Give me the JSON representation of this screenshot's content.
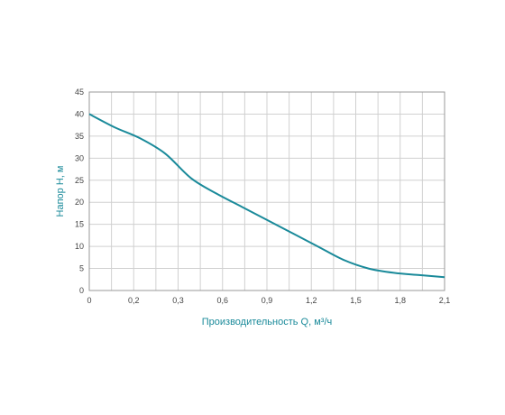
{
  "chart_data": {
    "type": "line",
    "title": "",
    "xlabel": "Производительность Q, м³/ч",
    "ylabel": "Напор Н, м",
    "xlim": [
      0,
      2.1
    ],
    "ylim": [
      0,
      45
    ],
    "grid": true,
    "x_major_ticks": [
      "0",
      "0,2",
      "0,3",
      "0,6",
      "0,9",
      "1,2",
      "1,5",
      "1,8",
      "2,1"
    ],
    "y_ticks": [
      "0",
      "5",
      "10",
      "15",
      "20",
      "25",
      "30",
      "35",
      "40",
      "45"
    ],
    "series": [
      {
        "x": [
          0,
          0.15,
          0.3,
          0.45,
          0.6,
          0.75,
          0.9,
          1.05,
          1.2,
          1.35,
          1.5,
          1.65,
          1.8,
          1.95,
          2.1
        ],
        "y": [
          40,
          37,
          34.5,
          31,
          25.5,
          22,
          19,
          16,
          13,
          10,
          7,
          5,
          4,
          3.5,
          3
        ]
      }
    ]
  },
  "colors": {
    "line": "#1a8a9a",
    "label": "#1a8a9a",
    "grid": "#d0d0d0",
    "axis": "#999999"
  }
}
